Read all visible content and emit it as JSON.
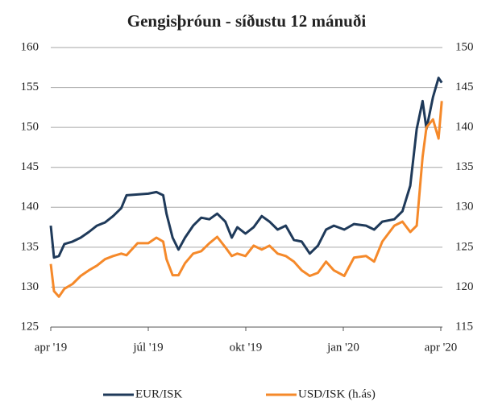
{
  "chart_data": {
    "type": "line",
    "title": "Gengisþróun - síðustu 12 mánuði",
    "x": [
      0,
      0.1,
      0.25,
      0.42,
      0.67,
      0.92,
      1.17,
      1.42,
      1.67,
      1.92,
      2.17,
      2.33,
      2.67,
      3,
      3.25,
      3.46,
      3.56,
      3.75,
      3.93,
      4.13,
      4.38,
      4.63,
      4.88,
      5.12,
      5.37,
      5.57,
      5.74,
      5.99,
      6.24,
      6.49,
      6.73,
      6.98,
      7.23,
      7.48,
      7.72,
      7.97,
      8.22,
      8.47,
      8.71,
      9.03,
      9.33,
      9.7,
      9.95,
      10.2,
      10.57,
      10.82,
      11.06,
      11.26,
      11.44,
      11.56,
      11.76,
      11.93,
      12.03
    ],
    "series": [
      {
        "name": "EUR/ISK",
        "color": "#1f3a5a",
        "values": [
          137.7,
          133.7,
          133.9,
          135.4,
          135.7,
          136.2,
          136.9,
          137.7,
          138.1,
          138.9,
          139.9,
          141.5,
          141.6,
          141.7,
          141.9,
          141.5,
          139.2,
          136.2,
          134.7,
          136.2,
          137.7,
          138.7,
          138.5,
          139.2,
          138.2,
          136.2,
          137.5,
          136.7,
          137.5,
          138.9,
          138.2,
          137.2,
          137.7,
          135.9,
          135.7,
          134.2,
          135.2,
          137.2,
          137.7,
          137.2,
          137.9,
          137.7,
          137.2,
          138.2,
          138.5,
          139.5,
          142.7,
          149.8,
          153.3,
          149.8,
          153.8,
          156.2,
          155.6
        ]
      },
      {
        "name": "USD/ISK (h.ás)",
        "color": "#f5892a",
        "axis": "y2",
        "values": [
          122.9,
          119.5,
          118.8,
          119.8,
          120.4,
          121.4,
          122.1,
          122.7,
          123.5,
          123.9,
          124.2,
          124.0,
          125.5,
          125.5,
          126.2,
          125.7,
          123.5,
          121.5,
          121.5,
          123.0,
          124.2,
          124.5,
          125.5,
          126.3,
          125.0,
          123.9,
          124.2,
          123.9,
          125.2,
          124.7,
          125.2,
          124.2,
          123.9,
          123.2,
          122.1,
          121.4,
          121.8,
          123.2,
          122.1,
          121.4,
          123.7,
          123.9,
          123.2,
          125.7,
          127.7,
          128.2,
          126.9,
          127.7,
          136.3,
          140.0,
          141.0,
          138.6,
          143.3
        ]
      }
    ],
    "xlim": [
      0,
      12.05
    ],
    "xticks": [
      {
        "value": 0,
        "label": "apr '19"
      },
      {
        "value": 3,
        "label": "júl '19"
      },
      {
        "value": 6,
        "label": "okt '19"
      },
      {
        "value": 9,
        "label": "jan '20"
      },
      {
        "value": 12,
        "label": "apr '20"
      }
    ],
    "ylim": [
      125,
      160
    ],
    "yticks": [
      125,
      130,
      135,
      140,
      145,
      150,
      155,
      160
    ],
    "y2lim": [
      115,
      150
    ],
    "y2ticks": [
      115,
      120,
      125,
      130,
      135,
      140,
      145,
      150
    ],
    "grid": true,
    "legend": "bottom"
  }
}
